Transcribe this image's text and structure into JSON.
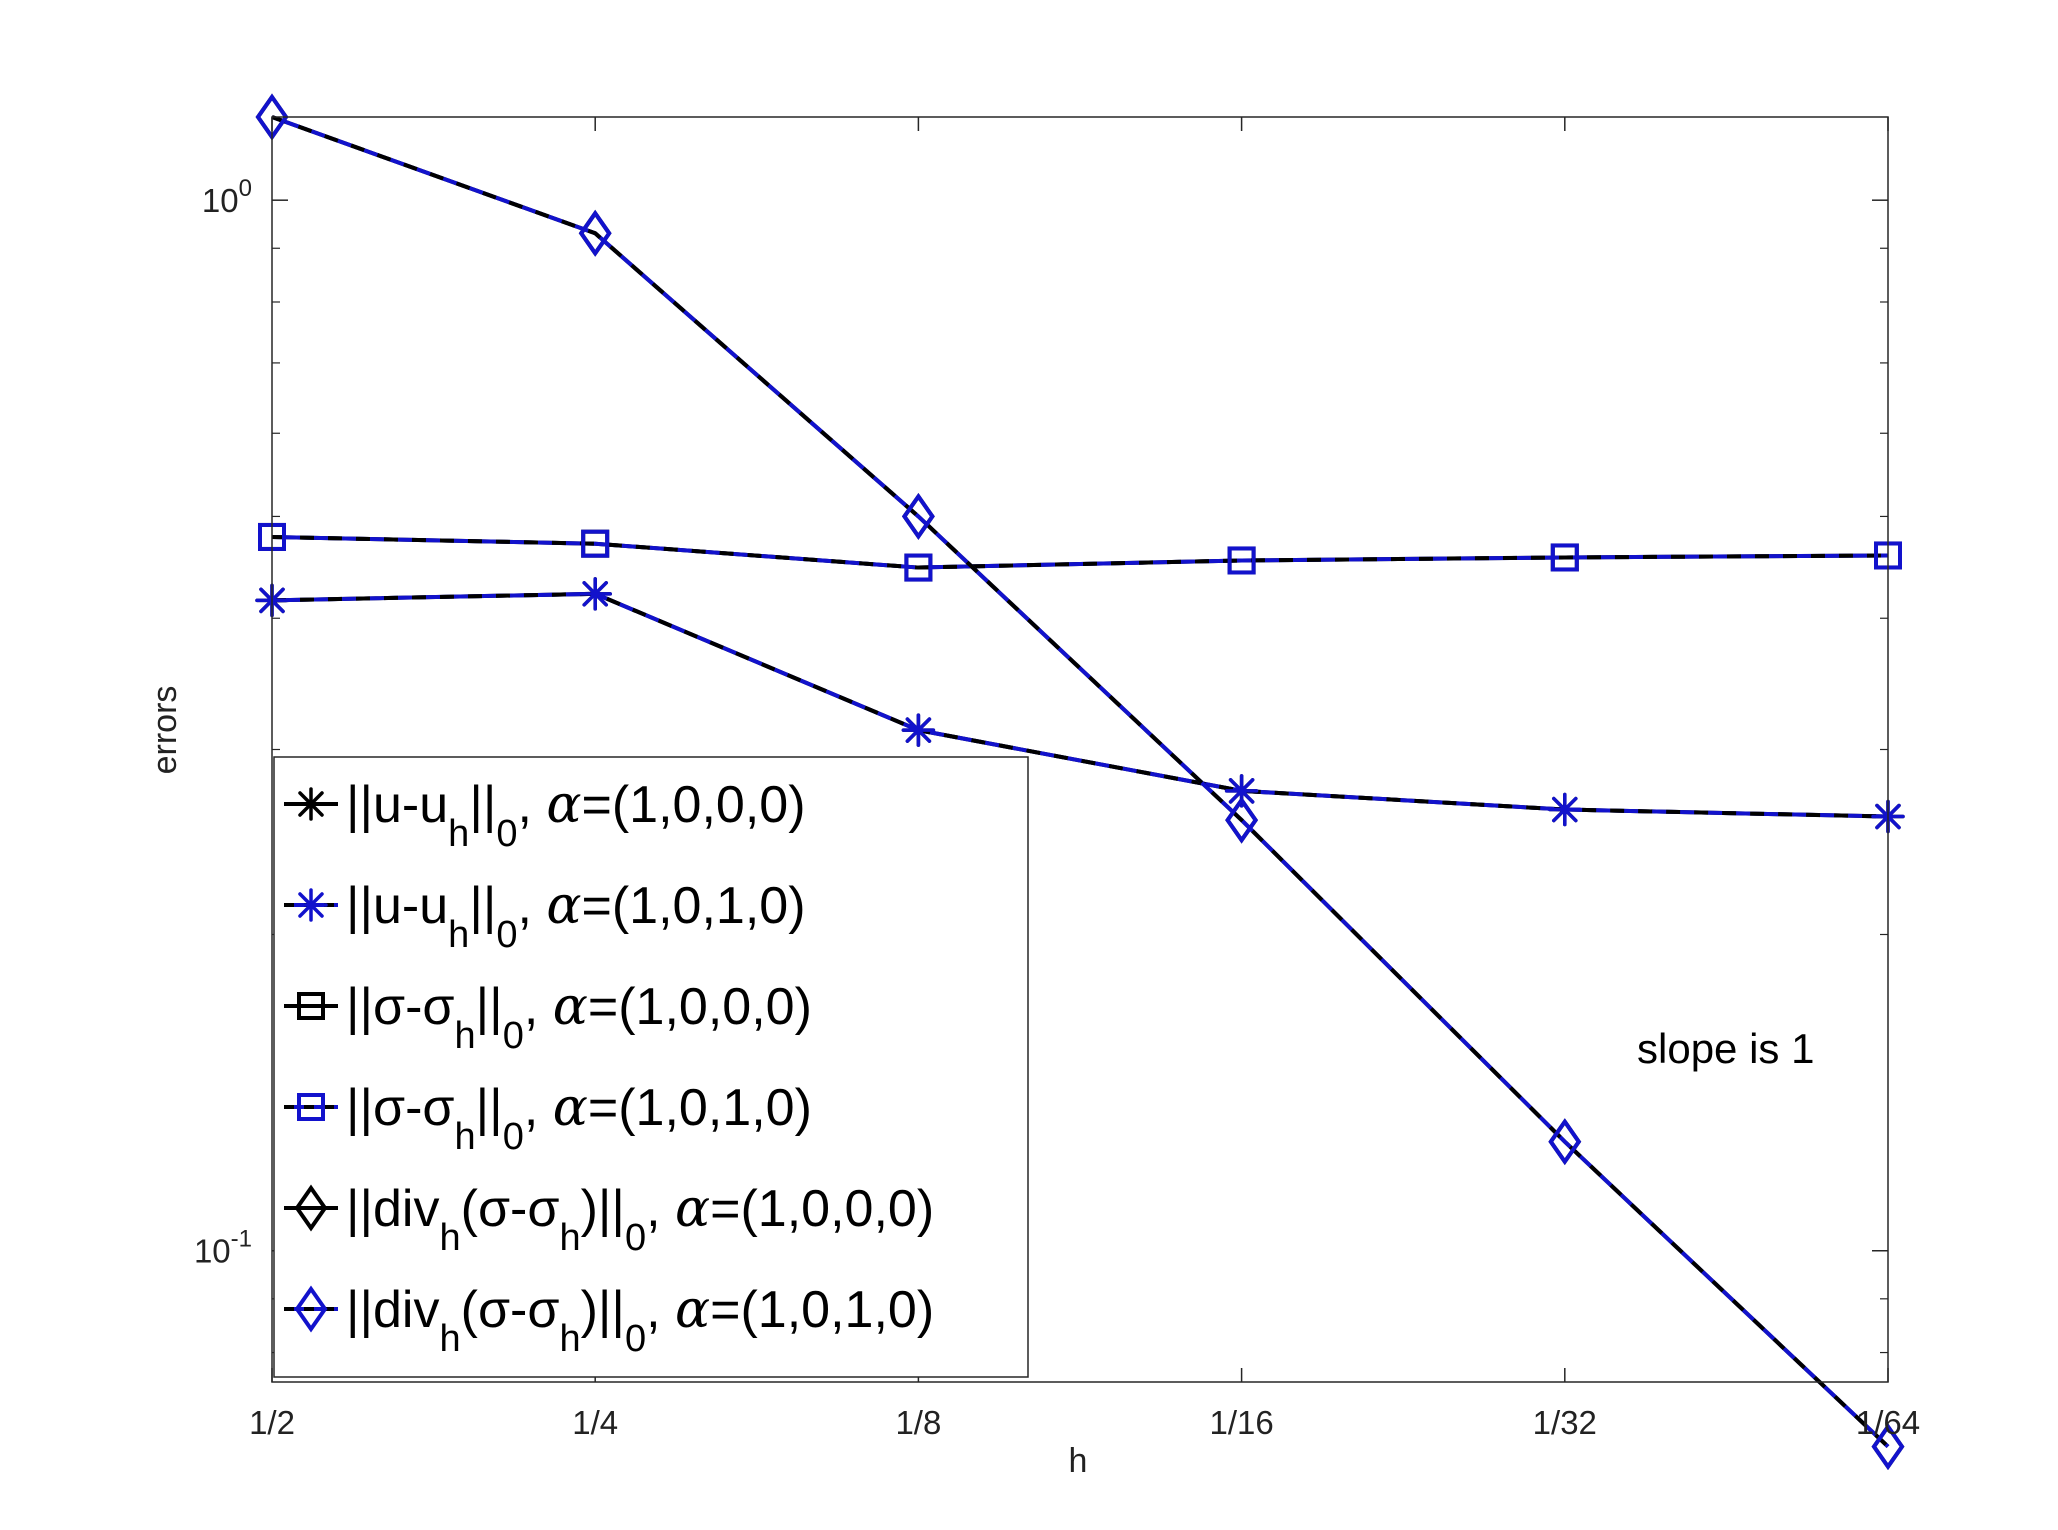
{
  "chart_data": {
    "type": "line",
    "xlabel": "h",
    "ylabel": "errors",
    "yscale": "log",
    "ylim": [
      0.075,
      1.2
    ],
    "categories": [
      "1/2",
      "1/4",
      "1/8",
      "1/16",
      "1/32",
      "1/64"
    ],
    "yticks": [
      {
        "value": 1.0,
        "base": "10",
        "exp": "0"
      },
      {
        "value": 0.1,
        "base": "10",
        "exp": "-1"
      }
    ],
    "grid": false,
    "legend_position": "bottom-left",
    "annotation": "slope is 1",
    "series": [
      {
        "legend": {
          "norm": "u-u",
          "sub1": "h",
          "close": "",
          "sub0": "0",
          "alpha": "=(1,0,0,0)"
        },
        "color": "#000000",
        "dash": "#000000",
        "marker": "star",
        "values": [
          0.416,
          0.422,
          0.313,
          0.274,
          0.263,
          0.259
        ]
      },
      {
        "legend": {
          "norm": "u-u",
          "sub1": "h",
          "close": "",
          "sub0": "0",
          "alpha": "=(1,0,1,0)"
        },
        "color": "#1212cc",
        "dash": "#000000",
        "marker": "star",
        "values": [
          0.416,
          0.422,
          0.313,
          0.274,
          0.263,
          0.259
        ]
      },
      {
        "legend": {
          "norm": "σ-σ",
          "sub1": "h",
          "close": "",
          "sub0": "0",
          "alpha": "=(1,0,0,0)"
        },
        "color": "#000000",
        "dash": "#000000",
        "marker": "square",
        "values": [
          0.478,
          0.471,
          0.447,
          0.454,
          0.457,
          0.459
        ]
      },
      {
        "legend": {
          "norm": "σ-σ",
          "sub1": "h",
          "close": "",
          "sub0": "0",
          "alpha": "=(1,0,1,0)"
        },
        "color": "#1212cc",
        "dash": "#000000",
        "marker": "square",
        "values": [
          0.478,
          0.471,
          0.447,
          0.454,
          0.457,
          0.459
        ]
      },
      {
        "legend": {
          "norm": "div",
          "sub1": "h",
          "mid": "(σ-σ",
          "sub2": "h",
          "close": ")",
          "sub0": "0",
          "alpha": "=(1,0,0,0)"
        },
        "color": "#000000",
        "dash": "#000000",
        "marker": "diamond",
        "values": [
          1.2,
          0.93,
          0.5,
          0.257,
          0.127,
          0.0651
        ]
      },
      {
        "legend": {
          "norm": "div",
          "sub1": "h",
          "mid": "(σ-σ",
          "sub2": "h",
          "close": ")",
          "sub0": "0",
          "alpha": "=(1,0,1,0)"
        },
        "color": "#1212cc",
        "dash": "#000000",
        "marker": "diamond",
        "values": [
          1.2,
          0.93,
          0.5,
          0.257,
          0.127,
          0.0651
        ]
      }
    ]
  }
}
